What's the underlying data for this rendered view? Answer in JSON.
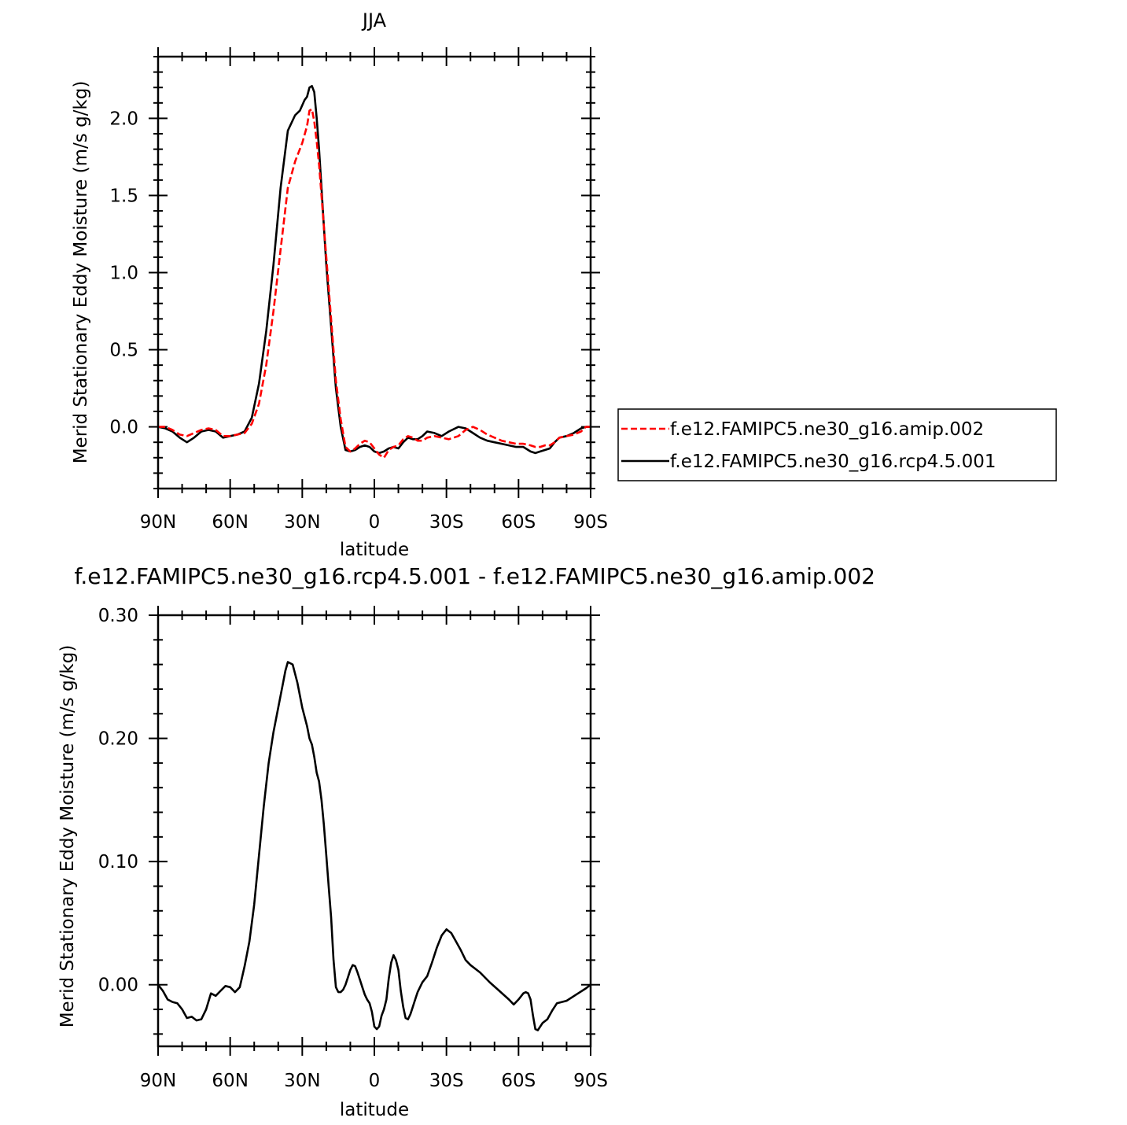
{
  "chart_data": [
    {
      "type": "line",
      "title": "JJA",
      "xlabel": "latitude",
      "ylabel": "Merid Stationary Eddy Moisture (m/s g/kg)",
      "xlim": [
        90,
        -90
      ],
      "ylim": [
        -0.4,
        2.4
      ],
      "x_ticks": [
        90,
        60,
        30,
        0,
        -30,
        -60,
        -90
      ],
      "x_tick_labels": [
        "90N",
        "60N",
        "30N",
        "0",
        "30S",
        "60S",
        "90S"
      ],
      "y_ticks": [
        0.0,
        0.5,
        1.0,
        1.5,
        2.0
      ],
      "y_tick_labels": [
        "0.0",
        "0.5",
        "1.0",
        "1.5",
        "2.0"
      ],
      "grid": false,
      "legend_position": "right",
      "series": [
        {
          "name": "f.e12.FAMIPC5.ne30_g16.amip.002",
          "color": "#ff0000",
          "dash": "dashed",
          "x": [
            90,
            87,
            84,
            81,
            78,
            75,
            72,
            69,
            66,
            63,
            60,
            57,
            54,
            51,
            48,
            45,
            42,
            39,
            36,
            33,
            30,
            28,
            27,
            26,
            25,
            24,
            23,
            22,
            21,
            20,
            18,
            16,
            14,
            12,
            10,
            8,
            6,
            4,
            2,
            0,
            -2,
            -4,
            -6,
            -8,
            -10,
            -12,
            -14,
            -16,
            -18,
            -20,
            -22,
            -25,
            -28,
            -31,
            -35,
            -38,
            -41,
            -44,
            -47,
            -50,
            -53,
            -56,
            -59,
            -62,
            -65,
            -67,
            -69,
            -71,
            -73,
            -75,
            -77,
            -80,
            -83,
            -86,
            -88,
            -90
          ],
          "y": [
            0.0,
            0.0,
            -0.02,
            -0.05,
            -0.06,
            -0.04,
            -0.02,
            -0.01,
            -0.02,
            -0.06,
            -0.06,
            -0.05,
            -0.04,
            0.02,
            0.15,
            0.4,
            0.75,
            1.15,
            1.55,
            1.72,
            1.84,
            1.95,
            2.05,
            2.06,
            1.98,
            1.85,
            1.7,
            1.5,
            1.3,
            1.1,
            0.7,
            0.3,
            0.05,
            -0.13,
            -0.16,
            -0.14,
            -0.11,
            -0.09,
            -0.1,
            -0.14,
            -0.18,
            -0.2,
            -0.15,
            -0.13,
            -0.12,
            -0.08,
            -0.06,
            -0.07,
            -0.09,
            -0.09,
            -0.07,
            -0.06,
            -0.07,
            -0.08,
            -0.06,
            -0.02,
            0.0,
            -0.02,
            -0.05,
            -0.07,
            -0.09,
            -0.1,
            -0.11,
            -0.11,
            -0.12,
            -0.13,
            -0.13,
            -0.12,
            -0.12,
            -0.1,
            -0.07,
            -0.06,
            -0.05,
            -0.03,
            0.0,
            0.0
          ]
        },
        {
          "name": "f.e12.FAMIPC5.ne30_g16.rcp4.5.001",
          "color": "#000000",
          "dash": "solid",
          "x": [
            90,
            87,
            84,
            81,
            78,
            75,
            72,
            69,
            66,
            63,
            60,
            57,
            54,
            51,
            48,
            45,
            42,
            39,
            36,
            33,
            31,
            29,
            28,
            27,
            26,
            25,
            24,
            23,
            22,
            21,
            20,
            18,
            16,
            14,
            12,
            10,
            8,
            6,
            4,
            2,
            0,
            -2,
            -4,
            -6,
            -8,
            -10,
            -12,
            -14,
            -16,
            -18,
            -20,
            -22,
            -25,
            -28,
            -31,
            -35,
            -38,
            -41,
            -44,
            -47,
            -50,
            -53,
            -56,
            -59,
            -62,
            -65,
            -67,
            -69,
            -71,
            -73,
            -75,
            -77,
            -80,
            -83,
            -86,
            -88,
            -90
          ],
          "y": [
            0.0,
            -0.01,
            -0.03,
            -0.07,
            -0.1,
            -0.07,
            -0.03,
            -0.02,
            -0.03,
            -0.07,
            -0.06,
            -0.05,
            -0.03,
            0.06,
            0.28,
            0.62,
            1.05,
            1.55,
            1.92,
            2.02,
            2.05,
            2.12,
            2.14,
            2.2,
            2.21,
            2.17,
            2.0,
            1.8,
            1.55,
            1.3,
            1.05,
            0.65,
            0.25,
            0.0,
            -0.15,
            -0.16,
            -0.15,
            -0.13,
            -0.12,
            -0.13,
            -0.16,
            -0.17,
            -0.16,
            -0.14,
            -0.13,
            -0.14,
            -0.1,
            -0.07,
            -0.08,
            -0.08,
            -0.06,
            -0.03,
            -0.04,
            -0.06,
            -0.03,
            0.0,
            -0.01,
            -0.04,
            -0.07,
            -0.09,
            -0.1,
            -0.11,
            -0.12,
            -0.13,
            -0.13,
            -0.16,
            -0.17,
            -0.16,
            -0.15,
            -0.14,
            -0.1,
            -0.07,
            -0.06,
            -0.04,
            -0.01,
            0.0,
            0.0
          ]
        }
      ]
    },
    {
      "type": "line",
      "title": "f.e12.FAMIPC5.ne30_g16.rcp4.5.001 - f.e12.FAMIPC5.ne30_g16.amip.002",
      "xlabel": "latitude",
      "ylabel": "Merid Stationary Eddy Moisture (m/s g/kg)",
      "xlim": [
        90,
        -90
      ],
      "ylim": [
        -0.05,
        0.3
      ],
      "x_ticks": [
        90,
        60,
        30,
        0,
        -30,
        -60,
        -90
      ],
      "x_tick_labels": [
        "90N",
        "60N",
        "30N",
        "0",
        "30S",
        "60S",
        "90S"
      ],
      "y_ticks": [
        0.0,
        0.1,
        0.2,
        0.3
      ],
      "y_tick_labels": [
        "0.00",
        "0.10",
        "0.20",
        "0.30"
      ],
      "grid": false,
      "series": [
        {
          "color": "#000000",
          "dash": "solid",
          "x": [
            90,
            88,
            86,
            84,
            82,
            80,
            78,
            76,
            74,
            72,
            70,
            68,
            66,
            64,
            62,
            60,
            58,
            56,
            54,
            52,
            50,
            48,
            46,
            44,
            42,
            40,
            38,
            37,
            36,
            34,
            32,
            30,
            28,
            27,
            26,
            25,
            24,
            23,
            22,
            21,
            20,
            19,
            18,
            17,
            16,
            15,
            14,
            13,
            12,
            11,
            10,
            9,
            8,
            7,
            6,
            5,
            4,
            3,
            2,
            1,
            0,
            -1,
            -2,
            -3,
            -4,
            -5,
            -6,
            -7,
            -8,
            -9,
            -10,
            -11,
            -12,
            -13,
            -14,
            -15,
            -16,
            -17,
            -18,
            -20,
            -22,
            -24,
            -26,
            -28,
            -30,
            -32,
            -34,
            -36,
            -38,
            -40,
            -44,
            -48,
            -52,
            -56,
            -58,
            -60,
            -62,
            -63,
            -64,
            -65,
            -66,
            -67,
            -68,
            -70,
            -72,
            -74,
            -76,
            -80,
            -84,
            -88,
            -90
          ],
          "y": [
            0.0,
            -0.005,
            -0.012,
            -0.014,
            -0.015,
            -0.02,
            -0.027,
            -0.026,
            -0.029,
            -0.028,
            -0.02,
            -0.007,
            -0.009,
            -0.005,
            -0.001,
            -0.002,
            -0.006,
            -0.002,
            0.015,
            0.035,
            0.065,
            0.105,
            0.145,
            0.18,
            0.205,
            0.225,
            0.245,
            0.255,
            0.262,
            0.26,
            0.245,
            0.225,
            0.21,
            0.2,
            0.195,
            0.185,
            0.172,
            0.165,
            0.15,
            0.13,
            0.105,
            0.08,
            0.055,
            0.02,
            -0.002,
            -0.006,
            -0.006,
            -0.004,
            0.0,
            0.006,
            0.012,
            0.016,
            0.015,
            0.01,
            0.004,
            -0.002,
            -0.008,
            -0.012,
            -0.015,
            -0.022,
            -0.034,
            -0.036,
            -0.034,
            -0.025,
            -0.02,
            -0.012,
            0.005,
            0.018,
            0.024,
            0.02,
            0.012,
            -0.005,
            -0.018,
            -0.027,
            -0.028,
            -0.024,
            -0.018,
            -0.012,
            -0.006,
            0.002,
            0.007,
            0.018,
            0.03,
            0.04,
            0.045,
            0.042,
            0.035,
            0.028,
            0.02,
            0.016,
            0.01,
            0.002,
            -0.005,
            -0.012,
            -0.016,
            -0.012,
            -0.007,
            -0.006,
            -0.007,
            -0.012,
            -0.025,
            -0.036,
            -0.037,
            -0.031,
            -0.028,
            -0.021,
            -0.015,
            -0.013,
            -0.008,
            -0.003,
            0.0
          ]
        }
      ]
    }
  ]
}
